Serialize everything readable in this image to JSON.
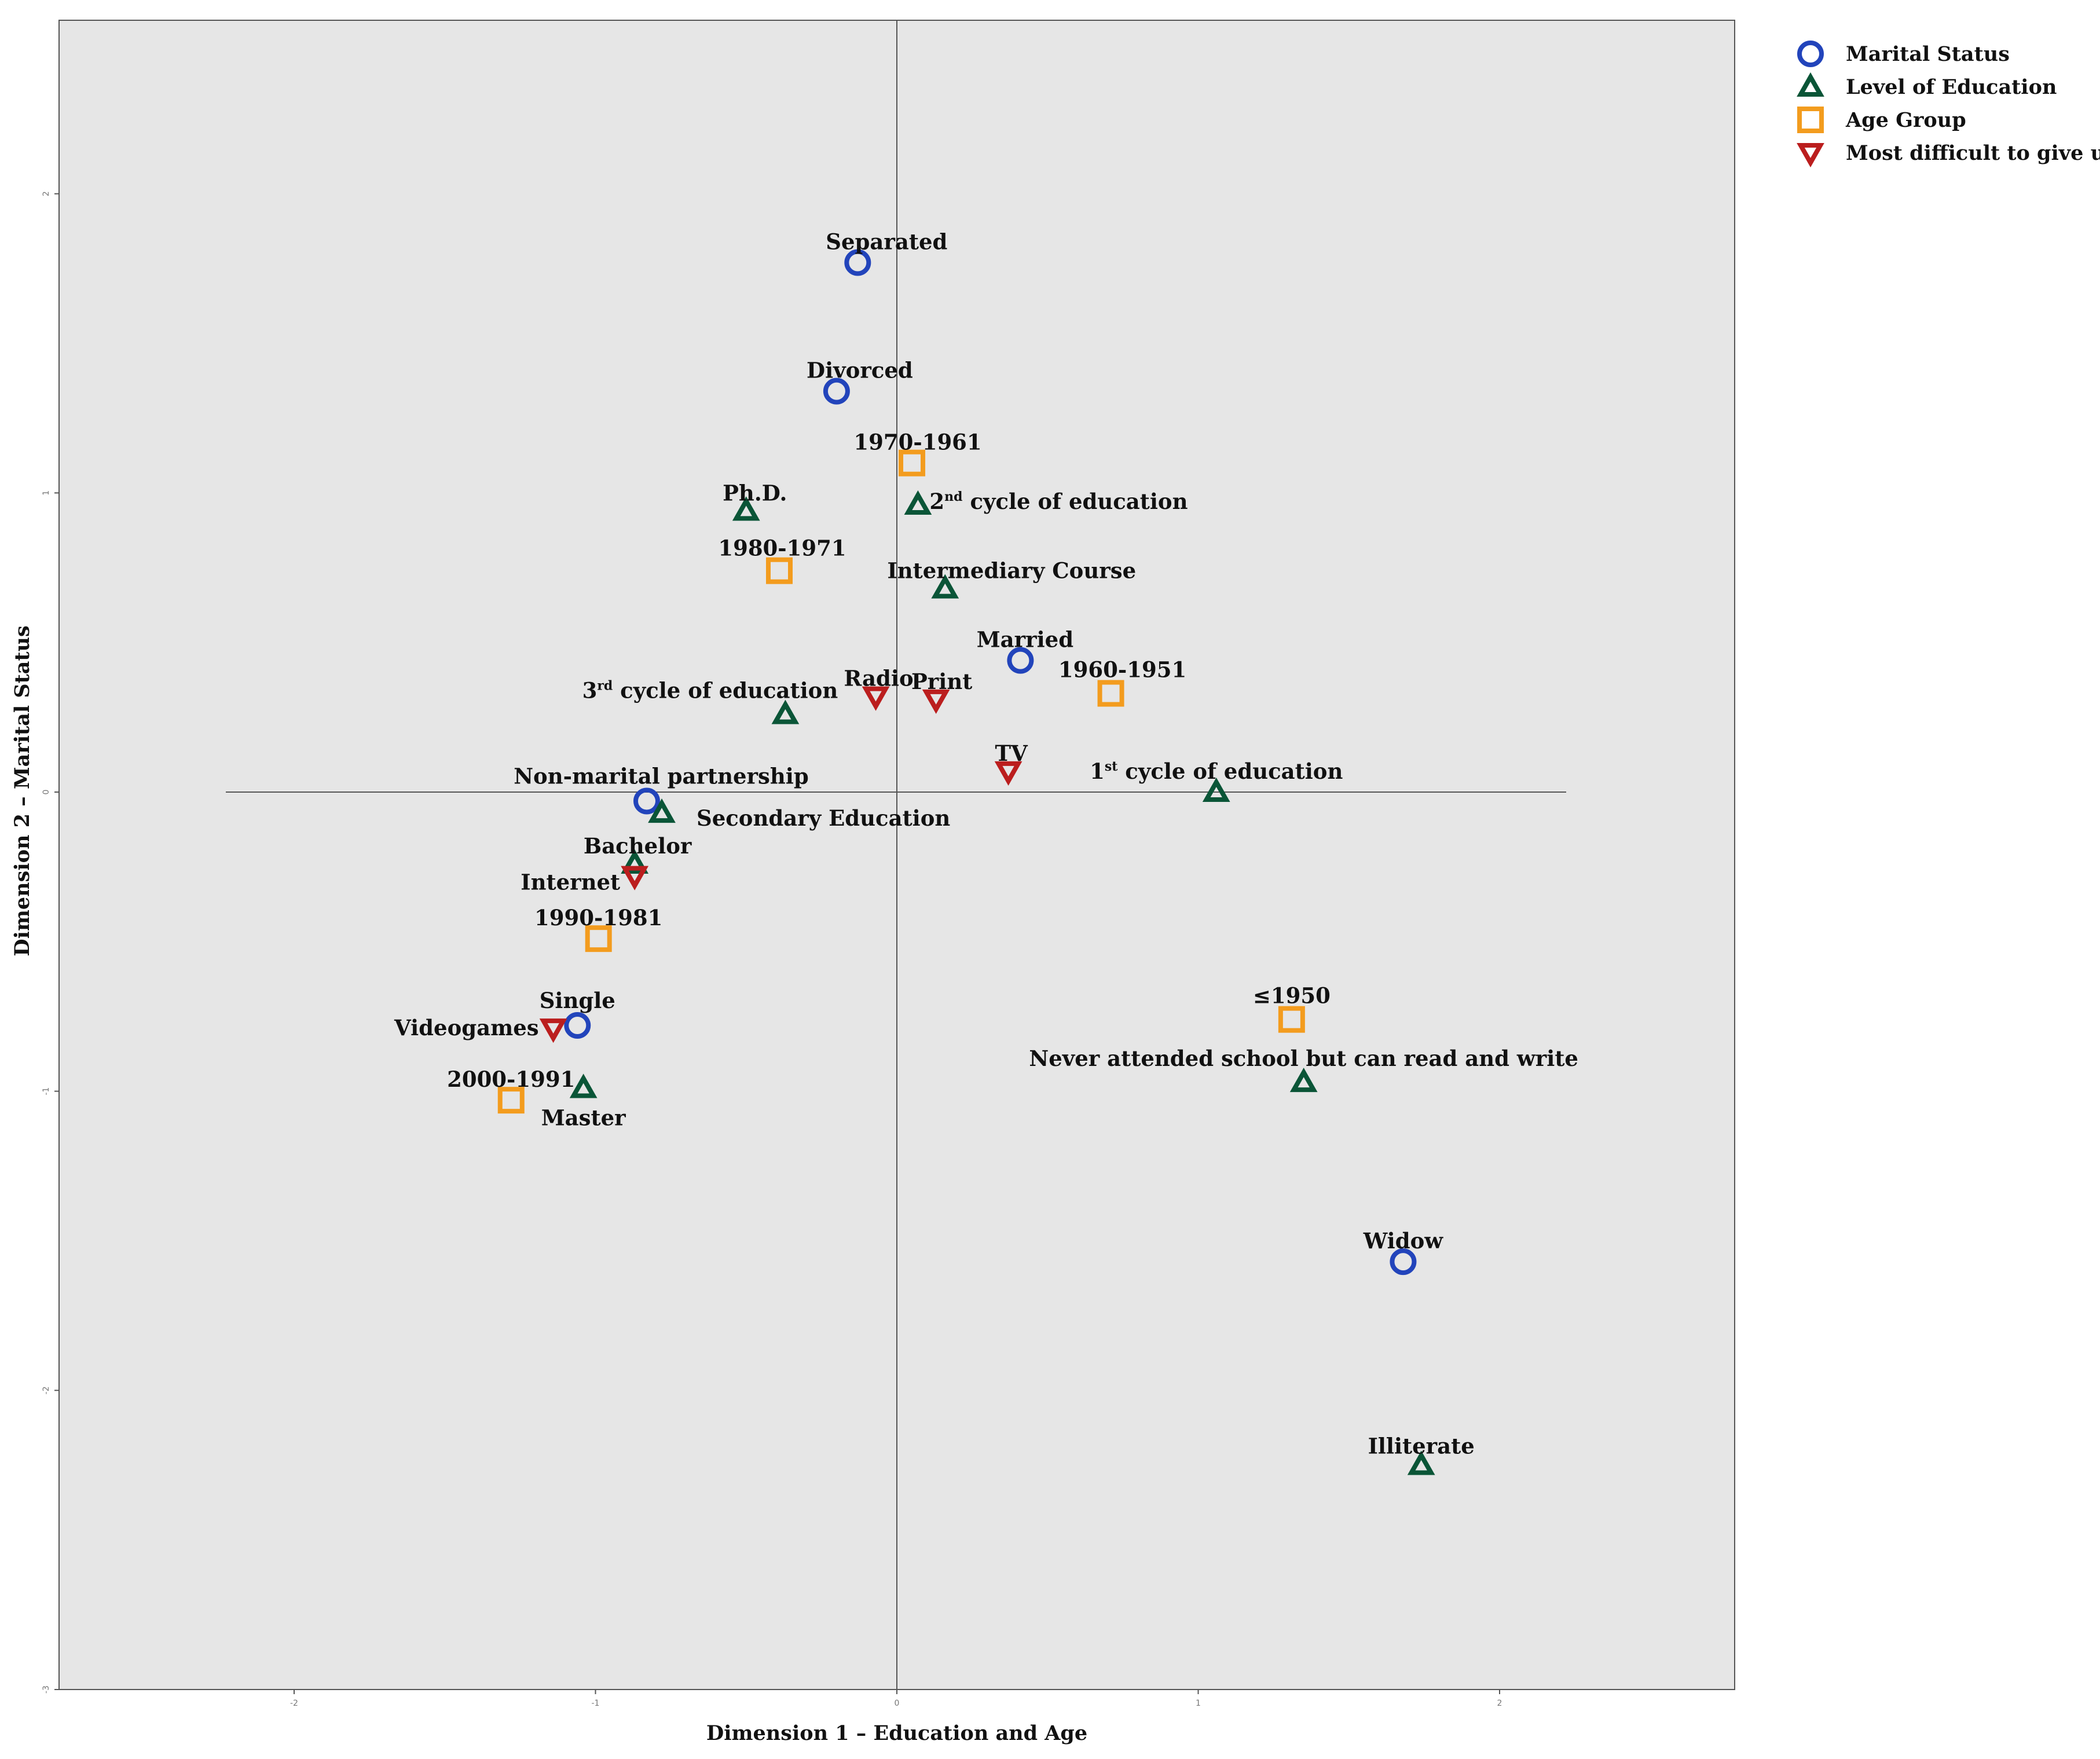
{
  "chart_data": {
    "type": "scatter",
    "title": "",
    "xlabel": "Dimension 1 – Education and Age",
    "ylabel": "Dimension 2 – Marital Status",
    "xlim": [
      -2.78,
      2.78
    ],
    "ylim": [
      -3.0,
      2.58
    ],
    "x_ticks": [
      -2,
      -1,
      0,
      1,
      2
    ],
    "y_ticks": [
      -3,
      -2,
      -1,
      0,
      1,
      2
    ],
    "x_tick_labels": [
      "-2",
      "-1",
      "0",
      "1",
      "2"
    ],
    "y_tick_labels": [
      "-3",
      "-2",
      "-1",
      "0",
      "1",
      "2"
    ],
    "grid": false,
    "legend_position": "top-right",
    "series": [
      {
        "name": "Marital Status",
        "marker": "circle",
        "color": "#2244bb",
        "points": [
          {
            "label": "Separated",
            "x": -0.13,
            "y": 1.77
          },
          {
            "label": "Divorced",
            "x": -0.2,
            "y": 1.34
          },
          {
            "label": "Married",
            "x": 0.41,
            "y": 0.44
          },
          {
            "label": "Non-marital partnership",
            "x": -0.83,
            "y": -0.03
          },
          {
            "label": "Single",
            "x": -1.06,
            "y": -0.78
          },
          {
            "label": "Widow",
            "x": 1.68,
            "y": -1.57
          }
        ]
      },
      {
        "name": "Level of Education",
        "marker": "triangle-up",
        "color": "#0a5537",
        "points": [
          {
            "label": "Ph.D.",
            "x": -0.5,
            "y": 0.94
          },
          {
            "label": "2nd cycle of education",
            "x": 0.07,
            "y": 0.96
          },
          {
            "label": "Intermediary Course",
            "x": 0.16,
            "y": 0.68
          },
          {
            "label": "3rd cycle of education",
            "x": -0.37,
            "y": 0.26
          },
          {
            "label": "1st cycle of education",
            "x": 1.06,
            "y": 0.0
          },
          {
            "label": "Secondary Education",
            "x": -0.78,
            "y": -0.07
          },
          {
            "label": "Bachelor",
            "x": -0.87,
            "y": -0.24
          },
          {
            "label": "Master",
            "x": -1.04,
            "y": -0.99
          },
          {
            "label": "Never attended school but can read and write",
            "x": 1.35,
            "y": -0.97
          },
          {
            "label": "Illiterate",
            "x": 1.74,
            "y": -2.25
          }
        ]
      },
      {
        "name": "Age Group",
        "marker": "square",
        "color": "#f39c1e",
        "points": [
          {
            "label": "1970-1961",
            "x": 0.05,
            "y": 1.1
          },
          {
            "label": "1980-1971",
            "x": -0.39,
            "y": 0.74
          },
          {
            "label": "1960-1951",
            "x": 0.71,
            "y": 0.33
          },
          {
            "label": "1990-1981",
            "x": -0.99,
            "y": -0.49
          },
          {
            "label": "2000-1991",
            "x": -1.28,
            "y": -1.03
          },
          {
            "label": "≤1950",
            "x": 1.31,
            "y": -0.76
          }
        ]
      },
      {
        "name": "Most difficult to give up",
        "marker": "triangle-down",
        "color": "#bb1e1e",
        "points": [
          {
            "label": "Radio",
            "x": -0.07,
            "y": 0.32
          },
          {
            "label": "Print",
            "x": 0.13,
            "y": 0.31
          },
          {
            "label": "TV",
            "x": 0.37,
            "y": 0.07
          },
          {
            "label": "Internet",
            "x": -0.87,
            "y": -0.28
          },
          {
            "label": "Videogames",
            "x": -1.14,
            "y": -0.79
          }
        ]
      }
    ]
  }
}
